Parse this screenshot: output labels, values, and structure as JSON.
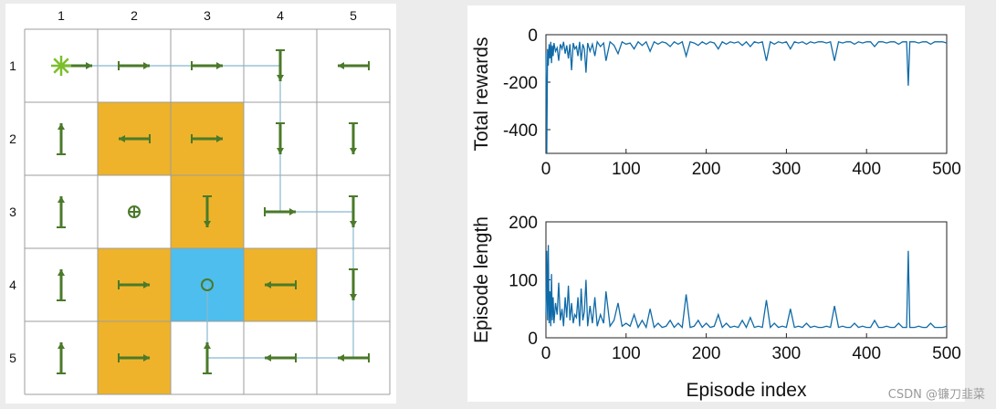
{
  "colors": {
    "forbidden": "#EEB32A",
    "target": "#4DBEEE",
    "arrow": "#4A7A2A",
    "line": "#0F6AA8",
    "grid": "#9c9c9c",
    "path": "#88b8d0"
  },
  "grid_world": {
    "columns": [
      "1",
      "2",
      "3",
      "4",
      "5"
    ],
    "rows": [
      "1",
      "2",
      "3",
      "4",
      "5"
    ],
    "forbidden_cells": [
      [
        2,
        2
      ],
      [
        2,
        3
      ],
      [
        3,
        3
      ],
      [
        4,
        2
      ],
      [
        4,
        4
      ],
      [
        5,
        2
      ]
    ],
    "target_cell": [
      4,
      3
    ],
    "start_cell": [
      1,
      1
    ],
    "policy": [
      [
        "right",
        "right",
        "right",
        "down",
        "left"
      ],
      [
        "up",
        "left",
        "right",
        "down",
        "down"
      ],
      [
        "up",
        "stay",
        "down",
        "right",
        "down"
      ],
      [
        "up",
        "right",
        "stay",
        "left",
        "down"
      ],
      [
        "up",
        "right",
        "up",
        "left",
        "left"
      ]
    ],
    "markers": {
      "start": "star",
      "stay_forbidden": "circle-plus",
      "stay_target": "circle"
    }
  },
  "chart_data": [
    {
      "type": "line",
      "ylabel": "Total rewards",
      "xlabel": "",
      "xlim": [
        0,
        500
      ],
      "ylim": [
        -500,
        0
      ],
      "xticks": [
        "0",
        "100",
        "200",
        "300",
        "400",
        "500"
      ],
      "yticks": [
        "0",
        "-200",
        "-400"
      ],
      "series": [
        {
          "x": [
            0,
            1,
            2,
            3,
            4,
            5,
            6,
            7,
            8,
            9,
            10,
            12,
            14,
            16,
            18,
            20,
            22,
            24,
            26,
            28,
            30,
            32,
            34,
            36,
            38,
            40,
            42,
            44,
            46,
            48,
            50,
            52,
            55,
            58,
            61,
            64,
            68,
            72,
            75,
            80,
            85,
            90,
            95,
            100,
            105,
            110,
            115,
            120,
            125,
            130,
            135,
            140,
            145,
            150,
            155,
            160,
            165,
            170,
            175,
            180,
            185,
            190,
            195,
            200,
            205,
            210,
            215,
            220,
            225,
            230,
            235,
            240,
            245,
            250,
            255,
            260,
            265,
            270,
            275,
            280,
            285,
            290,
            295,
            300,
            305,
            310,
            315,
            320,
            325,
            330,
            335,
            340,
            345,
            350,
            355,
            360,
            365,
            370,
            375,
            380,
            385,
            390,
            395,
            400,
            405,
            410,
            415,
            420,
            425,
            430,
            435,
            440,
            445,
            450,
            452,
            454,
            456,
            460,
            465,
            470,
            475,
            480,
            485,
            490,
            495,
            500
          ],
          "y": [
            -80,
            -500,
            -60,
            -130,
            -40,
            -100,
            -30,
            -120,
            -45,
            -90,
            -35,
            -70,
            -55,
            -110,
            -40,
            -60,
            -30,
            -80,
            -45,
            -100,
            -40,
            -150,
            -35,
            -60,
            -50,
            -90,
            -30,
            -110,
            -40,
            -60,
            -160,
            -35,
            -70,
            -40,
            -90,
            -30,
            -50,
            -35,
            -110,
            -30,
            -45,
            -80,
            -30,
            -40,
            -35,
            -60,
            -30,
            -45,
            -30,
            -70,
            -30,
            -40,
            -30,
            -35,
            -50,
            -30,
            -40,
            -30,
            -90,
            -30,
            -35,
            -45,
            -30,
            -40,
            -30,
            -35,
            -60,
            -30,
            -40,
            -30,
            -35,
            -30,
            -45,
            -30,
            -50,
            -30,
            -35,
            -30,
            -110,
            -30,
            -40,
            -30,
            -35,
            -30,
            -60,
            -30,
            -35,
            -30,
            -40,
            -30,
            -35,
            -30,
            -30,
            -35,
            -30,
            -110,
            -30,
            -35,
            -30,
            -30,
            -40,
            -30,
            -35,
            -30,
            -30,
            -50,
            -30,
            -30,
            -35,
            -30,
            -30,
            -40,
            -30,
            -30,
            -215,
            -30,
            -30,
            -30,
            -35,
            -30,
            -30,
            -40,
            -30,
            -30,
            -30,
            -35
          ]
        }
      ]
    },
    {
      "type": "line",
      "ylabel": "Episode length",
      "xlabel": "Episode index",
      "xlim": [
        0,
        500
      ],
      "ylim": [
        0,
        200
      ],
      "xticks": [
        "0",
        "100",
        "200",
        "300",
        "400",
        "500"
      ],
      "yticks": [
        "200",
        "100",
        "0"
      ],
      "series": [
        {
          "x": [
            0,
            1,
            2,
            3,
            4,
            5,
            6,
            7,
            8,
            9,
            10,
            12,
            14,
            16,
            18,
            20,
            22,
            24,
            26,
            28,
            30,
            32,
            34,
            36,
            38,
            40,
            42,
            44,
            46,
            48,
            50,
            52,
            55,
            58,
            61,
            64,
            68,
            72,
            75,
            80,
            85,
            90,
            95,
            100,
            105,
            110,
            115,
            120,
            125,
            130,
            135,
            140,
            145,
            150,
            155,
            160,
            165,
            170,
            175,
            180,
            185,
            190,
            195,
            200,
            205,
            210,
            215,
            220,
            225,
            230,
            235,
            240,
            245,
            250,
            255,
            260,
            265,
            270,
            275,
            280,
            285,
            290,
            295,
            300,
            305,
            310,
            315,
            320,
            325,
            330,
            335,
            340,
            345,
            350,
            355,
            360,
            365,
            370,
            375,
            380,
            385,
            390,
            395,
            400,
            405,
            410,
            415,
            420,
            425,
            430,
            435,
            440,
            445,
            450,
            452,
            454,
            456,
            460,
            465,
            470,
            475,
            480,
            485,
            490,
            495,
            500
          ],
          "y": [
            40,
            150,
            30,
            160,
            25,
            80,
            20,
            110,
            30,
            70,
            25,
            60,
            40,
            95,
            30,
            50,
            20,
            70,
            35,
            90,
            30,
            60,
            25,
            40,
            35,
            70,
            20,
            85,
            30,
            45,
            100,
            20,
            55,
            25,
            70,
            20,
            40,
            25,
            80,
            20,
            30,
            60,
            20,
            25,
            20,
            40,
            18,
            30,
            18,
            50,
            18,
            25,
            18,
            20,
            30,
            18,
            25,
            18,
            75,
            18,
            20,
            30,
            18,
            25,
            18,
            20,
            40,
            18,
            25,
            18,
            20,
            18,
            30,
            18,
            35,
            18,
            20,
            18,
            65,
            18,
            25,
            18,
            20,
            18,
            50,
            18,
            20,
            18,
            25,
            18,
            20,
            18,
            18,
            20,
            18,
            55,
            18,
            20,
            18,
            18,
            25,
            18,
            20,
            18,
            18,
            30,
            18,
            18,
            20,
            18,
            18,
            25,
            18,
            18,
            150,
            18,
            18,
            18,
            20,
            18,
            18,
            25,
            18,
            18,
            18,
            20
          ]
        }
      ]
    }
  ],
  "watermark": "CSDN @镰刀韭菜"
}
